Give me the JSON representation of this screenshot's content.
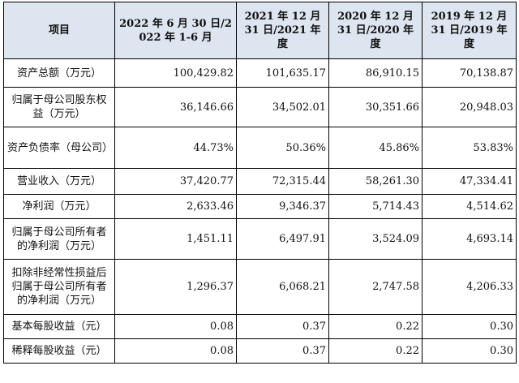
{
  "table": {
    "headers": [
      "项目",
      "2022 年 6 月 30 日/2022 年 1-6 月",
      "2021 年 12 月 31 日/2021 年度",
      "2020 年 12 月 31 日/2020 年度",
      "2019 年 12 月 31 日/2019 年度"
    ],
    "rows": [
      {
        "label": "资产总额（万元）",
        "values": [
          "100,429.82",
          "101,635.17",
          "86,910.15",
          "70,138.87"
        ]
      },
      {
        "label": "归属于母公司股东权益（万元）",
        "values": [
          "36,146.66",
          "34,502.01",
          "30,351.66",
          "20,948.03"
        ]
      },
      {
        "label": "资产负债率（母公司）",
        "values": [
          "44.73%",
          "50.36%",
          "45.86%",
          "53.83%"
        ]
      },
      {
        "label": "营业收入（万元）",
        "values": [
          "37,420.77",
          "72,315.44",
          "58,261.30",
          "47,334.41"
        ]
      },
      {
        "label": "净利润（万元）",
        "values": [
          "2,633.46",
          "9,346.37",
          "5,714.43",
          "4,514.62"
        ]
      },
      {
        "label": "归属于母公司所有者的净利润（万元）",
        "values": [
          "1,451.11",
          "6,497.91",
          "3,524.09",
          "4,693.14"
        ]
      },
      {
        "label": "扣除非经常性损益后归属于母公司所有者的净利润（万元）",
        "values": [
          "1,296.37",
          "6,068.21",
          "2,747.58",
          "4,206.33"
        ]
      },
      {
        "label": "基本每股收益（元）",
        "values": [
          "0.08",
          "0.37",
          "0.22",
          "0.30"
        ]
      },
      {
        "label": "稀释每股收益（元）",
        "values": [
          "0.08",
          "0.37",
          "0.22",
          "0.30"
        ]
      }
    ]
  }
}
